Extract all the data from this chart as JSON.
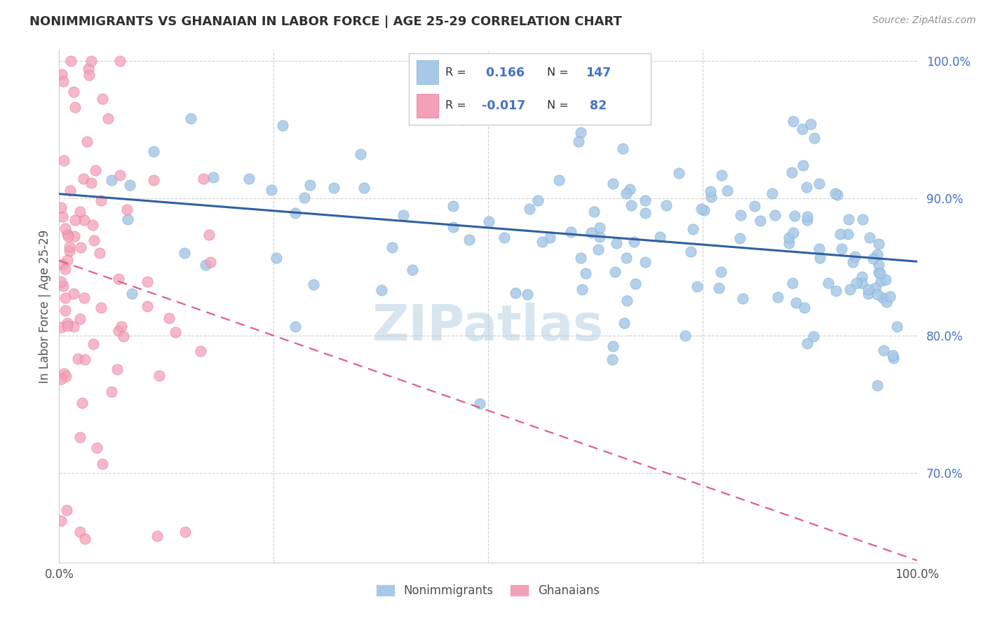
{
  "title": "NONIMMIGRANTS VS GHANAIAN IN LABOR FORCE | AGE 25-29 CORRELATION CHART",
  "source": "Source: ZipAtlas.com",
  "ylabel": "In Labor Force | Age 25-29",
  "legend_label1": "Nonimmigrants",
  "legend_label2": "Ghanaians",
  "R1": 0.166,
  "N1": 147,
  "R2": -0.017,
  "N2": 82,
  "blue_color": "#a8c8e8",
  "blue_edge_color": "#7aafd4",
  "pink_color": "#f4a0b8",
  "pink_edge_color": "#e87090",
  "blue_line_color": "#3060a0",
  "pink_line_color": "#e06080",
  "title_color": "#303030",
  "source_color": "#909090",
  "background_color": "#ffffff",
  "grid_color": "#d0d0d0",
  "right_tick_color": "#4472c4",
  "xlim": [
    0.0,
    1.0
  ],
  "ylim": [
    0.635,
    1.008
  ],
  "yticks": [
    0.7,
    0.8,
    0.9,
    1.0
  ],
  "ytick_labels": [
    "70.0%",
    "80.0%",
    "90.0%",
    "100.0%"
  ],
  "seed": 7,
  "watermark_text": "ZIPatlas",
  "watermark_color": "#b0cce0",
  "watermark_alpha": 0.5
}
